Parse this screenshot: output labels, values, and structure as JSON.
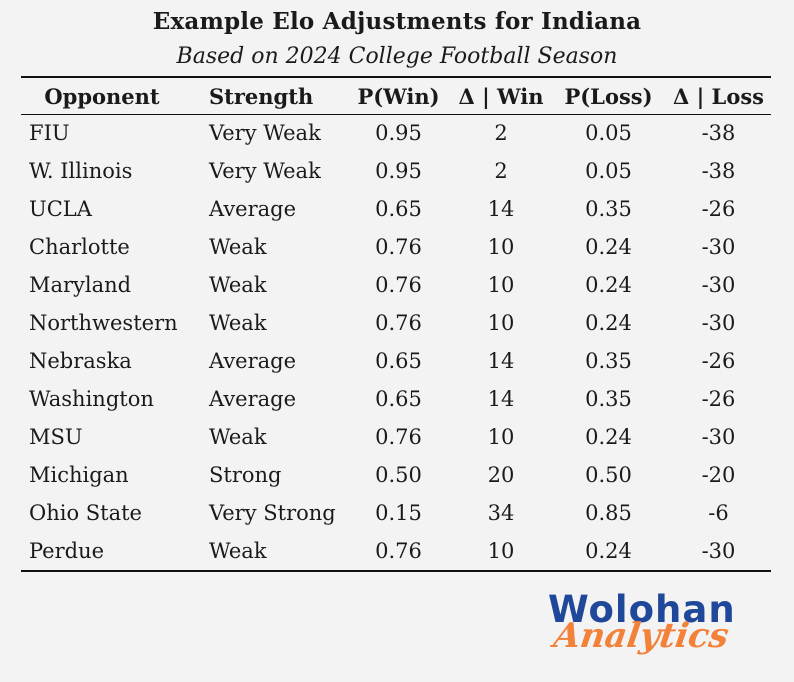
{
  "chart_data": {
    "type": "table",
    "title": "Example Elo Adjustments for Indiana",
    "subtitle": "Based on 2024 College Football Season",
    "columns": [
      "Opponent",
      "Strength",
      "P(Win)",
      "Δ | Win",
      "P(Loss)",
      "Δ | Loss"
    ],
    "rows": [
      [
        "FIU",
        "Very Weak",
        "0.95",
        "2",
        "0.05",
        "-38"
      ],
      [
        "W. Illinois",
        "Very Weak",
        "0.95",
        "2",
        "0.05",
        "-38"
      ],
      [
        "UCLA",
        "Average",
        "0.65",
        "14",
        "0.35",
        "-26"
      ],
      [
        "Charlotte",
        "Weak",
        "0.76",
        "10",
        "0.24",
        "-30"
      ],
      [
        "Maryland",
        "Weak",
        "0.76",
        "10",
        "0.24",
        "-30"
      ],
      [
        "Northwestern",
        "Weak",
        "0.76",
        "10",
        "0.24",
        "-30"
      ],
      [
        "Nebraska",
        "Average",
        "0.65",
        "14",
        "0.35",
        "-26"
      ],
      [
        "Washington",
        "Average",
        "0.65",
        "14",
        "0.35",
        "-26"
      ],
      [
        "MSU",
        "Weak",
        "0.76",
        "10",
        "0.24",
        "-30"
      ],
      [
        "Michigan",
        "Strong",
        "0.50",
        "20",
        "0.50",
        "-20"
      ],
      [
        "Ohio State",
        "Very Strong",
        "0.15",
        "34",
        "0.85",
        "-6"
      ],
      [
        "Perdue",
        "Weak",
        "0.76",
        "10",
        "0.24",
        "-30"
      ]
    ]
  },
  "logo": {
    "line1": "Wolohan",
    "line2": "Analytics",
    "colors": {
      "line1": "#20489a",
      "line2": "#f2823a"
    }
  }
}
